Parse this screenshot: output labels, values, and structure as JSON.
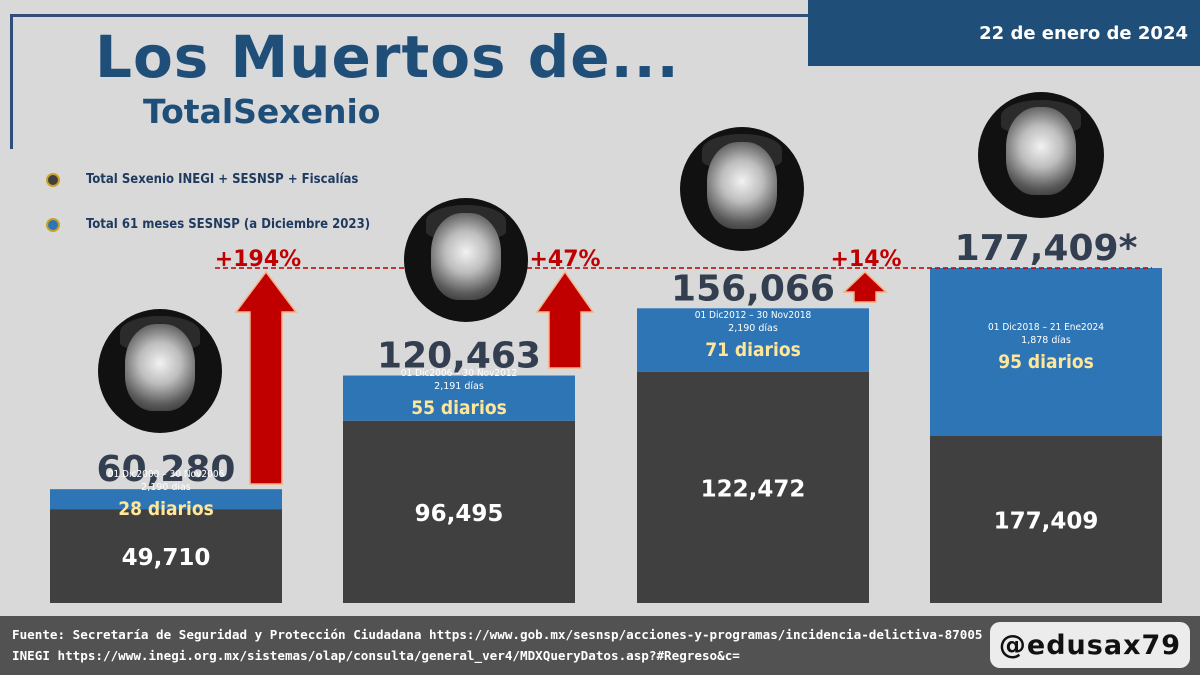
{
  "header": {
    "date": "22 de enero de 2024",
    "title": "Los Muertos de...",
    "subtitle": "TotalSexenio"
  },
  "colors": {
    "inegi": "#404040",
    "sesnsp": "#2e75b6",
    "arrow": "#c00000",
    "title": "#1f4e79",
    "daily_text": "#ffe699"
  },
  "legend": [
    {
      "label": "Total Sexenio INEGI + SESNSP + Fiscalías",
      "color": "#404040"
    },
    {
      "label": "Total 61 meses SESNSP (a Diciembre 2023)",
      "color": "#2e75b6"
    }
  ],
  "portraits": [
    {
      "icon": "portrait-icon-fox"
    },
    {
      "icon": "portrait-icon-calderon"
    },
    {
      "icon": "portrait-icon-pena-nieto"
    },
    {
      "icon": "portrait-icon-amlo"
    }
  ],
  "chart_data": {
    "type": "bar",
    "series": [
      {
        "name": "Total Sexenio INEGI + SESNSP + Fiscalías",
        "values": [
          49710,
          96495,
          122472,
          177409
        ]
      },
      {
        "name": "Total 61 meses SESNSP (a Diciembre 2023)",
        "values": [
          60280,
          120463,
          156066,
          177409
        ]
      }
    ],
    "total_labels": [
      "60,280",
      "120,463",
      "156,066",
      "177,409*"
    ],
    "bottom_labels": [
      "49,710",
      "96,495",
      "122,472",
      "177,409"
    ],
    "periods": [
      "01 Dic2000 – 30 Nov2006",
      "01 Dic2006 – 30 Nov2012",
      "01 Dic2012 – 30 Nov2018",
      "01 Dic2018 – 21 Ene2024"
    ],
    "days": [
      "2,190 días",
      "2,191 días",
      "2,190 días",
      "1,878 días"
    ],
    "daily": [
      "28 diarios",
      "55 diarios",
      "71 diarios",
      "95 diarios"
    ],
    "increases": [
      "+194%",
      "+47%",
      "+14%"
    ],
    "reference_line_value": 177409,
    "ylim": [
      0,
      177409
    ]
  },
  "footer": {
    "source_line1": "Fuente: Secretaría de Seguridad y Protección Ciudadana https://www.gob.mx/sesnsp/acciones-y-programas/incidencia-delictiva-87005",
    "source_line2": "INEGI https://www.inegi.org.mx/sistemas/olap/consulta/general_ver4/MDXQueryDatos.asp?#Regreso&c=",
    "handle": "@edusax79"
  }
}
